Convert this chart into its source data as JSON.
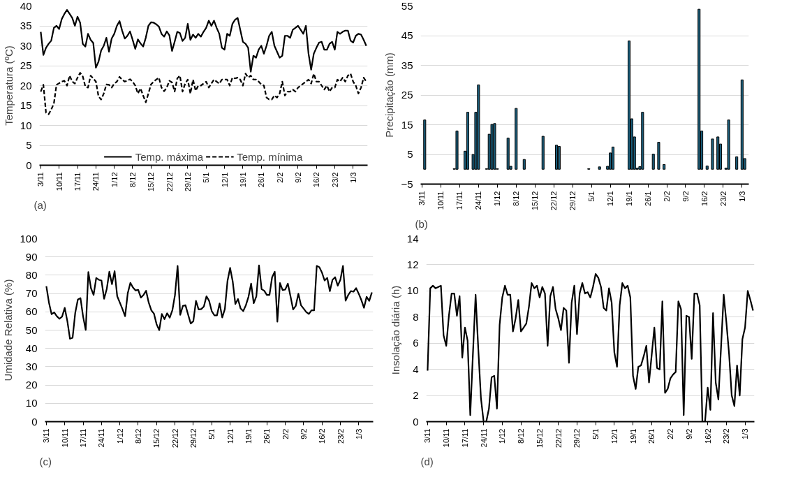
{
  "chart_data": [
    {
      "type": "line",
      "ylabel": "Temperatura (ºC)",
      "annotations": [
        "(a)"
      ],
      "legend": "bottom",
      "grid": "y",
      "ylim": [
        0,
        40
      ],
      "yticks": [
        0,
        5,
        10,
        15,
        20,
        25,
        30,
        35,
        40
      ],
      "categories": [
        "3/11",
        null,
        null,
        null,
        null,
        null,
        null,
        "10/11",
        null,
        null,
        null,
        null,
        null,
        null,
        "17/11",
        null,
        null,
        null,
        null,
        null,
        null,
        "24/11",
        null,
        null,
        null,
        null,
        null,
        null,
        "1/12",
        null,
        null,
        null,
        null,
        null,
        null,
        "8/12",
        null,
        null,
        null,
        null,
        null,
        null,
        "15/12",
        null,
        null,
        null,
        null,
        null,
        null,
        "22/12",
        null,
        null,
        null,
        null,
        null,
        null,
        "29/12",
        null,
        null,
        null,
        null,
        null,
        null,
        "5/1",
        null,
        null,
        null,
        null,
        null,
        null,
        "12/1",
        null,
        null,
        null,
        null,
        null,
        null,
        "19/1",
        null,
        null,
        null,
        null,
        null,
        null,
        "26/1",
        null,
        null,
        null,
        null,
        null,
        null,
        "2/2",
        null,
        null,
        null,
        null,
        null,
        null,
        "9/2",
        null,
        null,
        null,
        null,
        null,
        null,
        "16/2",
        null,
        null,
        null,
        null,
        null,
        null,
        "23/2",
        null,
        null,
        null,
        null,
        null,
        null,
        "1/3",
        null,
        null,
        null,
        null,
        null
      ],
      "series": [
        {
          "name": "Temp. máxima",
          "color": "#000000",
          "line_style": "solid",
          "values": [
            33.5,
            27.7,
            29.5,
            30.5,
            31.3,
            34.5,
            35,
            34.2,
            36.7,
            38,
            39,
            38,
            37,
            35,
            37.3,
            35.8,
            30.5,
            29.8,
            33,
            31.5,
            30.7,
            24.5,
            26,
            28.8,
            30,
            32,
            28.5,
            31.8,
            33,
            35,
            36.2,
            33.8,
            31.8,
            32.5,
            33.6,
            31.5,
            29.2,
            31.6,
            30.6,
            29.8,
            32,
            35,
            35.9,
            35.8,
            35.4,
            34.8,
            33,
            32.3,
            33.6,
            32.6,
            28.7,
            31,
            33.5,
            33.2,
            31.2,
            32,
            35.5,
            31.5,
            32.8,
            32,
            33,
            32.3,
            33.5,
            34.5,
            36.3,
            35,
            36.3,
            34.5,
            33,
            29.5,
            29,
            33,
            32.5,
            35.5,
            36.5,
            37,
            34,
            31,
            30.5,
            29.5,
            23.5,
            27.5,
            27,
            29,
            30,
            28,
            30,
            32.5,
            33.5,
            30,
            28.5,
            27,
            27.5,
            32.5,
            32.5,
            32,
            34,
            34.5,
            35,
            34,
            33,
            35,
            28,
            24,
            28,
            29.5,
            30.8,
            31,
            29,
            29,
            30.5,
            31,
            29,
            33.5,
            33,
            33.5,
            33.8,
            33.8,
            31.3,
            30.8,
            32.5,
            33,
            32.8,
            31.5,
            30
          ]
        },
        {
          "name": "Temp. mínima",
          "color": "#000000",
          "line_style": "dashed",
          "values": [
            18.5,
            20.2,
            13.2,
            12.8,
            14,
            15.5,
            20.2,
            20.6,
            21,
            21.2,
            20,
            22.5,
            21,
            20.5,
            22,
            23.2,
            22.3,
            19.7,
            19.5,
            22.5,
            21.8,
            21,
            17.3,
            16.5,
            18,
            20.3,
            20.2,
            19.5,
            20.5,
            21,
            22.2,
            21.5,
            21,
            21.3,
            21.6,
            21,
            20,
            18,
            19.3,
            17.5,
            15.8,
            18,
            20.3,
            21,
            21.5,
            22,
            19.5,
            18.6,
            19.5,
            21.2,
            20.8,
            18.5,
            21.8,
            22.5,
            18.5,
            20.5,
            21.5,
            18,
            21.5,
            18.7,
            20,
            20,
            20.5,
            21,
            19.5,
            20.5,
            21.5,
            21,
            20.5,
            21.5,
            21.5,
            21.5,
            20,
            22,
            21.8,
            22,
            21.5,
            20,
            23,
            22,
            22.5,
            21.5,
            21.5,
            21,
            20.3,
            20,
            17,
            16.5,
            16.5,
            17.5,
            17,
            18,
            21,
            17.5,
            18.5,
            18.5,
            19,
            18.5,
            19.5,
            20,
            20.5,
            21,
            21.5,
            20.5,
            23,
            21,
            21,
            20,
            19,
            20,
            18.5,
            19.5,
            19.5,
            21.5,
            21,
            22,
            21,
            22.5,
            23,
            21,
            20,
            18,
            19.5,
            22,
            21
          ]
        }
      ]
    },
    {
      "type": "bar",
      "ylabel": "Precipitação (mm)",
      "annotations": [
        "(b)"
      ],
      "grid": "y",
      "ylim": [
        -5,
        55
      ],
      "yticks": [
        -5,
        5,
        15,
        25,
        35,
        45,
        55
      ],
      "categories": [
        "3/11",
        null,
        null,
        null,
        null,
        null,
        null,
        "10/11",
        null,
        null,
        null,
        null,
        null,
        null,
        "17/11",
        null,
        null,
        null,
        null,
        null,
        null,
        "24/11",
        null,
        null,
        null,
        null,
        null,
        null,
        "1/12",
        null,
        null,
        null,
        null,
        null,
        null,
        "8/12",
        null,
        null,
        null,
        null,
        null,
        null,
        "15/12",
        null,
        null,
        null,
        null,
        null,
        null,
        "22/12",
        null,
        null,
        null,
        null,
        null,
        null,
        "29/12",
        null,
        null,
        null,
        null,
        null,
        null,
        "5/1",
        null,
        null,
        null,
        null,
        null,
        null,
        "12/1",
        null,
        null,
        null,
        null,
        null,
        null,
        "19/1",
        null,
        null,
        null,
        null,
        null,
        null,
        "26/1",
        null,
        null,
        null,
        null,
        null,
        null,
        "2/2",
        null,
        null,
        null,
        null,
        null,
        null,
        "9/2",
        null,
        null,
        null,
        null,
        null,
        null,
        "16/2",
        null,
        null,
        null,
        null,
        null,
        null,
        "23/2",
        null,
        null,
        null,
        null,
        null,
        null,
        "1/3",
        null,
        null
      ],
      "series": [
        {
          "color": "#1b5e7b",
          "values": [
            null,
            16.6,
            null,
            null,
            null,
            null,
            null,
            null,
            null,
            null,
            null,
            null,
            0.2,
            12.9,
            null,
            null,
            6.1,
            19.2,
            null,
            5,
            19.2,
            28.4,
            null,
            null,
            0.2,
            11.8,
            15.1,
            15.4,
            0.2,
            null,
            null,
            null,
            10.5,
            1,
            null,
            20.5,
            null,
            null,
            3.3,
            null,
            null,
            null,
            null,
            null,
            null,
            11.1,
            null,
            null,
            null,
            null,
            8.1,
            7.7,
            null,
            null,
            null,
            null,
            null,
            null,
            null,
            null,
            null,
            null,
            0.2,
            null,
            null,
            null,
            0.8,
            null,
            null,
            1,
            5.5,
            7.5,
            null,
            null,
            null,
            null,
            null,
            43.2,
            17,
            10.9,
            0.4,
            0.9,
            19.2,
            null,
            null,
            null,
            5.1,
            null,
            9.1,
            null,
            1.6,
            null,
            null,
            null,
            null,
            null,
            null,
            null,
            null,
            null,
            null,
            null,
            null,
            53.9,
            12.9,
            null,
            1.1,
            null,
            10.2,
            null,
            10.9,
            8.5,
            null,
            0.4,
            16.6,
            null,
            null,
            4.2,
            null,
            30.1,
            3.6,
            null
          ]
        }
      ]
    },
    {
      "type": "line",
      "ylabel": "Umidade Relativa (%)",
      "annotations": [
        "(c)"
      ],
      "grid": "y",
      "ylim": [
        0,
        100
      ],
      "yticks": [
        0,
        10,
        20,
        30,
        40,
        50,
        60,
        70,
        80,
        90,
        100
      ],
      "categories": [
        "3/11",
        null,
        null,
        null,
        null,
        null,
        null,
        "10/11",
        null,
        null,
        null,
        null,
        null,
        null,
        "17/11",
        null,
        null,
        null,
        null,
        null,
        null,
        "24/11",
        null,
        null,
        null,
        null,
        null,
        null,
        "1/12",
        null,
        null,
        null,
        null,
        null,
        null,
        "8/12",
        null,
        null,
        null,
        null,
        null,
        null,
        "15/12",
        null,
        null,
        null,
        null,
        null,
        null,
        "22/12",
        null,
        null,
        null,
        null,
        null,
        null,
        "29/12",
        null,
        null,
        null,
        null,
        null,
        null,
        "5/1",
        null,
        null,
        null,
        null,
        null,
        null,
        "12/1",
        null,
        null,
        null,
        null,
        null,
        null,
        "19/1",
        null,
        null,
        null,
        null,
        null,
        null,
        "26/1",
        null,
        null,
        null,
        null,
        null,
        null,
        "2/2",
        null,
        null,
        null,
        null,
        null,
        null,
        "9/2",
        null,
        null,
        null,
        null,
        null,
        null,
        "16/2",
        null,
        null,
        null,
        null,
        null,
        null,
        "23/2",
        null,
        null,
        null,
        null,
        null,
        null,
        "1/3",
        null,
        null,
        null,
        null,
        null
      ],
      "series": [
        {
          "color": "#000000",
          "values": [
            74,
            65,
            58.7,
            59.7,
            57.6,
            56.2,
            57.4,
            62.2,
            54.9,
            45.3,
            45.8,
            59.4,
            66.7,
            67.5,
            57.4,
            50.1,
            81.7,
            72.9,
            69.2,
            78.5,
            77.5,
            77.1,
            67.1,
            72.4,
            81.9,
            75.1,
            82.2,
            68.5,
            65,
            61.5,
            57.6,
            70.1,
            75.8,
            73.3,
            71.7,
            72,
            67.8,
            69.2,
            71.5,
            65,
            60.8,
            59,
            53.2,
            50,
            58.8,
            56,
            59.2,
            56.8,
            60.8,
            69.2,
            85.1,
            58.3,
            63.2,
            63.6,
            58.5,
            53.6,
            54.9,
            66,
            61.3,
            61.5,
            62.9,
            68.5,
            66,
            60.4,
            58.1,
            58.1,
            64.6,
            56.9,
            61.5,
            76.8,
            84,
            76.5,
            64.3,
            67,
            61.8,
            60.4,
            63.6,
            68.2,
            75.4,
            64.7,
            68.5,
            85.4,
            72.4,
            71.5,
            69.2,
            69.2,
            78.9,
            81.9,
            54.6,
            75.7,
            71.9,
            72.2,
            75.4,
            68.5,
            61.3,
            63.2,
            69.9,
            63.6,
            61.8,
            59.9,
            58.8,
            60.8,
            60.8,
            85.1,
            84.4,
            81.4,
            77.1,
            78.5,
            71.3,
            77.5,
            78.9,
            74.3,
            77.5,
            85.1,
            66.1,
            69.2,
            71.3,
            71,
            72.9,
            69.9,
            66.4,
            62.2,
            68.2,
            66,
            70.6
          ]
        }
      ]
    },
    {
      "type": "line",
      "ylabel": "Insolação diária (h)",
      "annotations": [
        "(d)"
      ],
      "grid": "y",
      "ylim": [
        0,
        14
      ],
      "yticks": [
        0,
        2,
        4,
        6,
        8,
        10,
        12,
        14
      ],
      "categories": [
        "3/11",
        null,
        null,
        null,
        null,
        null,
        null,
        "10/11",
        null,
        null,
        null,
        null,
        null,
        null,
        "17/11",
        null,
        null,
        null,
        null,
        null,
        null,
        "24/11",
        null,
        null,
        null,
        null,
        null,
        null,
        "1/12",
        null,
        null,
        null,
        null,
        null,
        null,
        "8/12",
        null,
        null,
        null,
        null,
        null,
        null,
        "15/12",
        null,
        null,
        null,
        null,
        null,
        null,
        "22/12",
        null,
        null,
        null,
        null,
        null,
        null,
        "29/12",
        null,
        null,
        null,
        null,
        null,
        null,
        "5/1",
        null,
        null,
        null,
        null,
        null,
        null,
        "12/1",
        null,
        null,
        null,
        null,
        null,
        null,
        "19/1",
        null,
        null,
        null,
        null,
        null,
        null,
        "26/1",
        null,
        null,
        null,
        null,
        null,
        null,
        "2/2",
        null,
        null,
        null,
        null,
        null,
        null,
        "9/2",
        null,
        null,
        null,
        null,
        null,
        null,
        "16/2",
        null,
        null,
        null,
        null,
        null,
        null,
        "23/2",
        null,
        null,
        null,
        null,
        null,
        null,
        "1/3",
        null,
        null,
        null
      ],
      "series": [
        {
          "color": "#000000",
          "values": [
            3.9,
            10.2,
            10.4,
            10.2,
            10.3,
            10.4,
            6.6,
            5.8,
            8.1,
            9.8,
            9.8,
            8.1,
            9.6,
            4.9,
            7.2,
            6.2,
            0.5,
            5.2,
            9.7,
            5.6,
            1.8,
            0,
            0,
            1,
            3.4,
            3.5,
            1,
            7.4,
            9.5,
            10.4,
            9.7,
            9.7,
            6.9,
            7.9,
            9.3,
            6.9,
            7.2,
            7.5,
            8.8,
            10.6,
            10.2,
            10.4,
            9.5,
            10.3,
            9.8,
            5.8,
            9.6,
            10.3,
            8.6,
            7.9,
            7,
            8.7,
            8.5,
            4.5,
            9.1,
            10.4,
            6.7,
            9.8,
            10.6,
            9.8,
            9.9,
            9.5,
            10.3,
            11.3,
            11,
            10.3,
            8.7,
            8.5,
            10.2,
            9.1,
            5.3,
            4.2,
            8.9,
            10.6,
            10.2,
            10.4,
            9.5,
            3.5,
            2.5,
            4.2,
            4.3,
            5,
            5.8,
            3,
            5.1,
            7.2,
            4.1,
            4,
            9.2,
            2.2,
            2.5,
            3.3,
            3.6,
            3.8,
            9.2,
            8.6,
            0.5,
            8.1,
            8,
            4.8,
            9.8,
            9.8,
            8.9,
            0,
            0,
            2.6,
            0.9,
            8.3,
            3,
            1.7,
            5.7,
            9.7,
            7.6,
            5.2,
            2,
            1.2,
            4.3,
            2,
            6.3,
            7.2,
            10,
            9.3,
            8.5
          ]
        }
      ]
    }
  ]
}
